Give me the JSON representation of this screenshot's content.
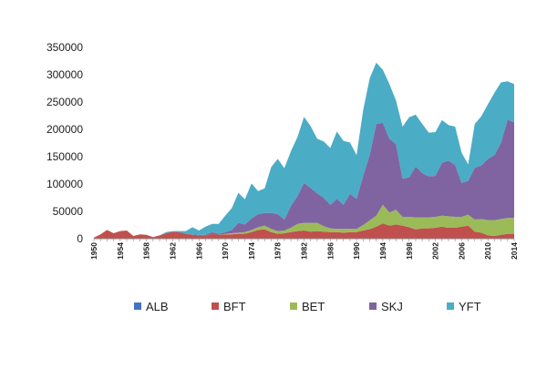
{
  "chart_data": {
    "type": "area",
    "stacked": true,
    "x": [
      1950,
      1951,
      1952,
      1953,
      1954,
      1955,
      1956,
      1957,
      1958,
      1959,
      1960,
      1961,
      1962,
      1963,
      1964,
      1965,
      1966,
      1967,
      1968,
      1969,
      1970,
      1971,
      1972,
      1973,
      1974,
      1975,
      1976,
      1977,
      1978,
      1979,
      1980,
      1981,
      1982,
      1983,
      1984,
      1985,
      1986,
      1987,
      1988,
      1989,
      1990,
      1991,
      1992,
      1993,
      1994,
      1995,
      1996,
      1997,
      1998,
      1999,
      2000,
      2001,
      2002,
      2003,
      2004,
      2005,
      2006,
      2007,
      2008,
      2009,
      2010,
      2011,
      2012,
      2013,
      2014
    ],
    "x_tick_labels": [
      "1950",
      "1954",
      "1958",
      "1962",
      "1966",
      "1970",
      "1974",
      "1978",
      "1982",
      "1986",
      "1990",
      "1994",
      "1998",
      "2002",
      "2006",
      "2010",
      "2014"
    ],
    "y_tick_labels": [
      "0",
      "50000",
      "100000",
      "150000",
      "200000",
      "250000",
      "300000",
      "350000"
    ],
    "ylim": [
      0,
      350000
    ],
    "legend_position": "bottom",
    "series": [
      {
        "name": "ALB",
        "color": "#4472C4",
        "values": [
          0,
          0,
          0,
          0,
          0,
          0,
          0,
          0,
          0,
          0,
          0,
          0,
          0,
          0,
          0,
          0,
          0,
          0,
          0,
          0,
          0,
          0,
          0,
          0,
          0,
          0,
          0,
          0,
          0,
          0,
          0,
          0,
          0,
          0,
          0,
          0,
          0,
          0,
          0,
          0,
          0,
          1000,
          500,
          0,
          0,
          0,
          0,
          0,
          0,
          0,
          0,
          0,
          0,
          0,
          0,
          0,
          0,
          0,
          0,
          0,
          0,
          0,
          0,
          0,
          0
        ]
      },
      {
        "name": "BFT",
        "color": "#C0504D",
        "values": [
          2000,
          8000,
          16000,
          10000,
          14000,
          15000,
          5000,
          8000,
          7000,
          3000,
          6000,
          10000,
          13000,
          12000,
          9000,
          7000,
          6000,
          5000,
          9000,
          7000,
          8000,
          8000,
          9000,
          9000,
          12000,
          16000,
          17000,
          12000,
          9000,
          10000,
          12000,
          14000,
          15000,
          13000,
          14000,
          13000,
          12000,
          12000,
          11000,
          12000,
          12000,
          14000,
          17000,
          22000,
          28000,
          24000,
          26000,
          24000,
          21000,
          17000,
          19000,
          19000,
          20000,
          22000,
          20000,
          20000,
          22000,
          24000,
          13000,
          11000,
          6000,
          5000,
          7000,
          9000,
          9000
        ]
      },
      {
        "name": "BET",
        "color": "#9BBB59",
        "values": [
          0,
          0,
          0,
          0,
          0,
          0,
          0,
          0,
          0,
          0,
          0,
          0,
          0,
          0,
          0,
          0,
          0,
          0,
          0,
          0,
          1000,
          2000,
          2000,
          3000,
          4000,
          5000,
          7000,
          6000,
          5000,
          5000,
          8000,
          13000,
          14000,
          16000,
          15000,
          10000,
          7000,
          6000,
          7000,
          6000,
          6000,
          10000,
          16000,
          20000,
          34000,
          24000,
          27000,
          16000,
          19000,
          22000,
          20000,
          20000,
          20000,
          20000,
          21000,
          20000,
          18000,
          20000,
          22000,
          25000,
          28000,
          29000,
          29000,
          29000,
          29000
        ]
      },
      {
        "name": "SKJ",
        "color": "#8064A2",
        "values": [
          0,
          0,
          0,
          0,
          0,
          0,
          0,
          0,
          0,
          0,
          0,
          0,
          0,
          0,
          0,
          1000,
          1000,
          2000,
          3000,
          2000,
          3000,
          6000,
          18000,
          14000,
          21000,
          24000,
          23000,
          29000,
          31000,
          20000,
          40000,
          51000,
          73000,
          64000,
          54000,
          52000,
          43000,
          55000,
          44000,
          64000,
          55000,
          90000,
          120000,
          168000,
          150000,
          135000,
          120000,
          70000,
          72000,
          93000,
          81000,
          75000,
          75000,
          97000,
          102000,
          95000,
          62000,
          62000,
          95000,
          98000,
          112000,
          119000,
          140000,
          180000,
          175000
        ]
      },
      {
        "name": "YFT",
        "color": "#4BACC6",
        "values": [
          0,
          0,
          0,
          0,
          0,
          0,
          0,
          0,
          0,
          0,
          0,
          2000,
          1000,
          2000,
          5000,
          13000,
          8000,
          15000,
          15000,
          18000,
          30000,
          40000,
          55000,
          46000,
          64000,
          42000,
          45000,
          84000,
          101000,
          94000,
          100000,
          108000,
          121000,
          113000,
          100000,
          103000,
          104000,
          123000,
          117000,
          94000,
          80000,
          120000,
          140000,
          112000,
          97000,
          100000,
          80000,
          95000,
          110000,
          95000,
          90000,
          80000,
          80000,
          78000,
          65000,
          70000,
          55000,
          30000,
          80000,
          90000,
          100000,
          114000,
          110000,
          70000,
          70000
        ]
      }
    ]
  }
}
